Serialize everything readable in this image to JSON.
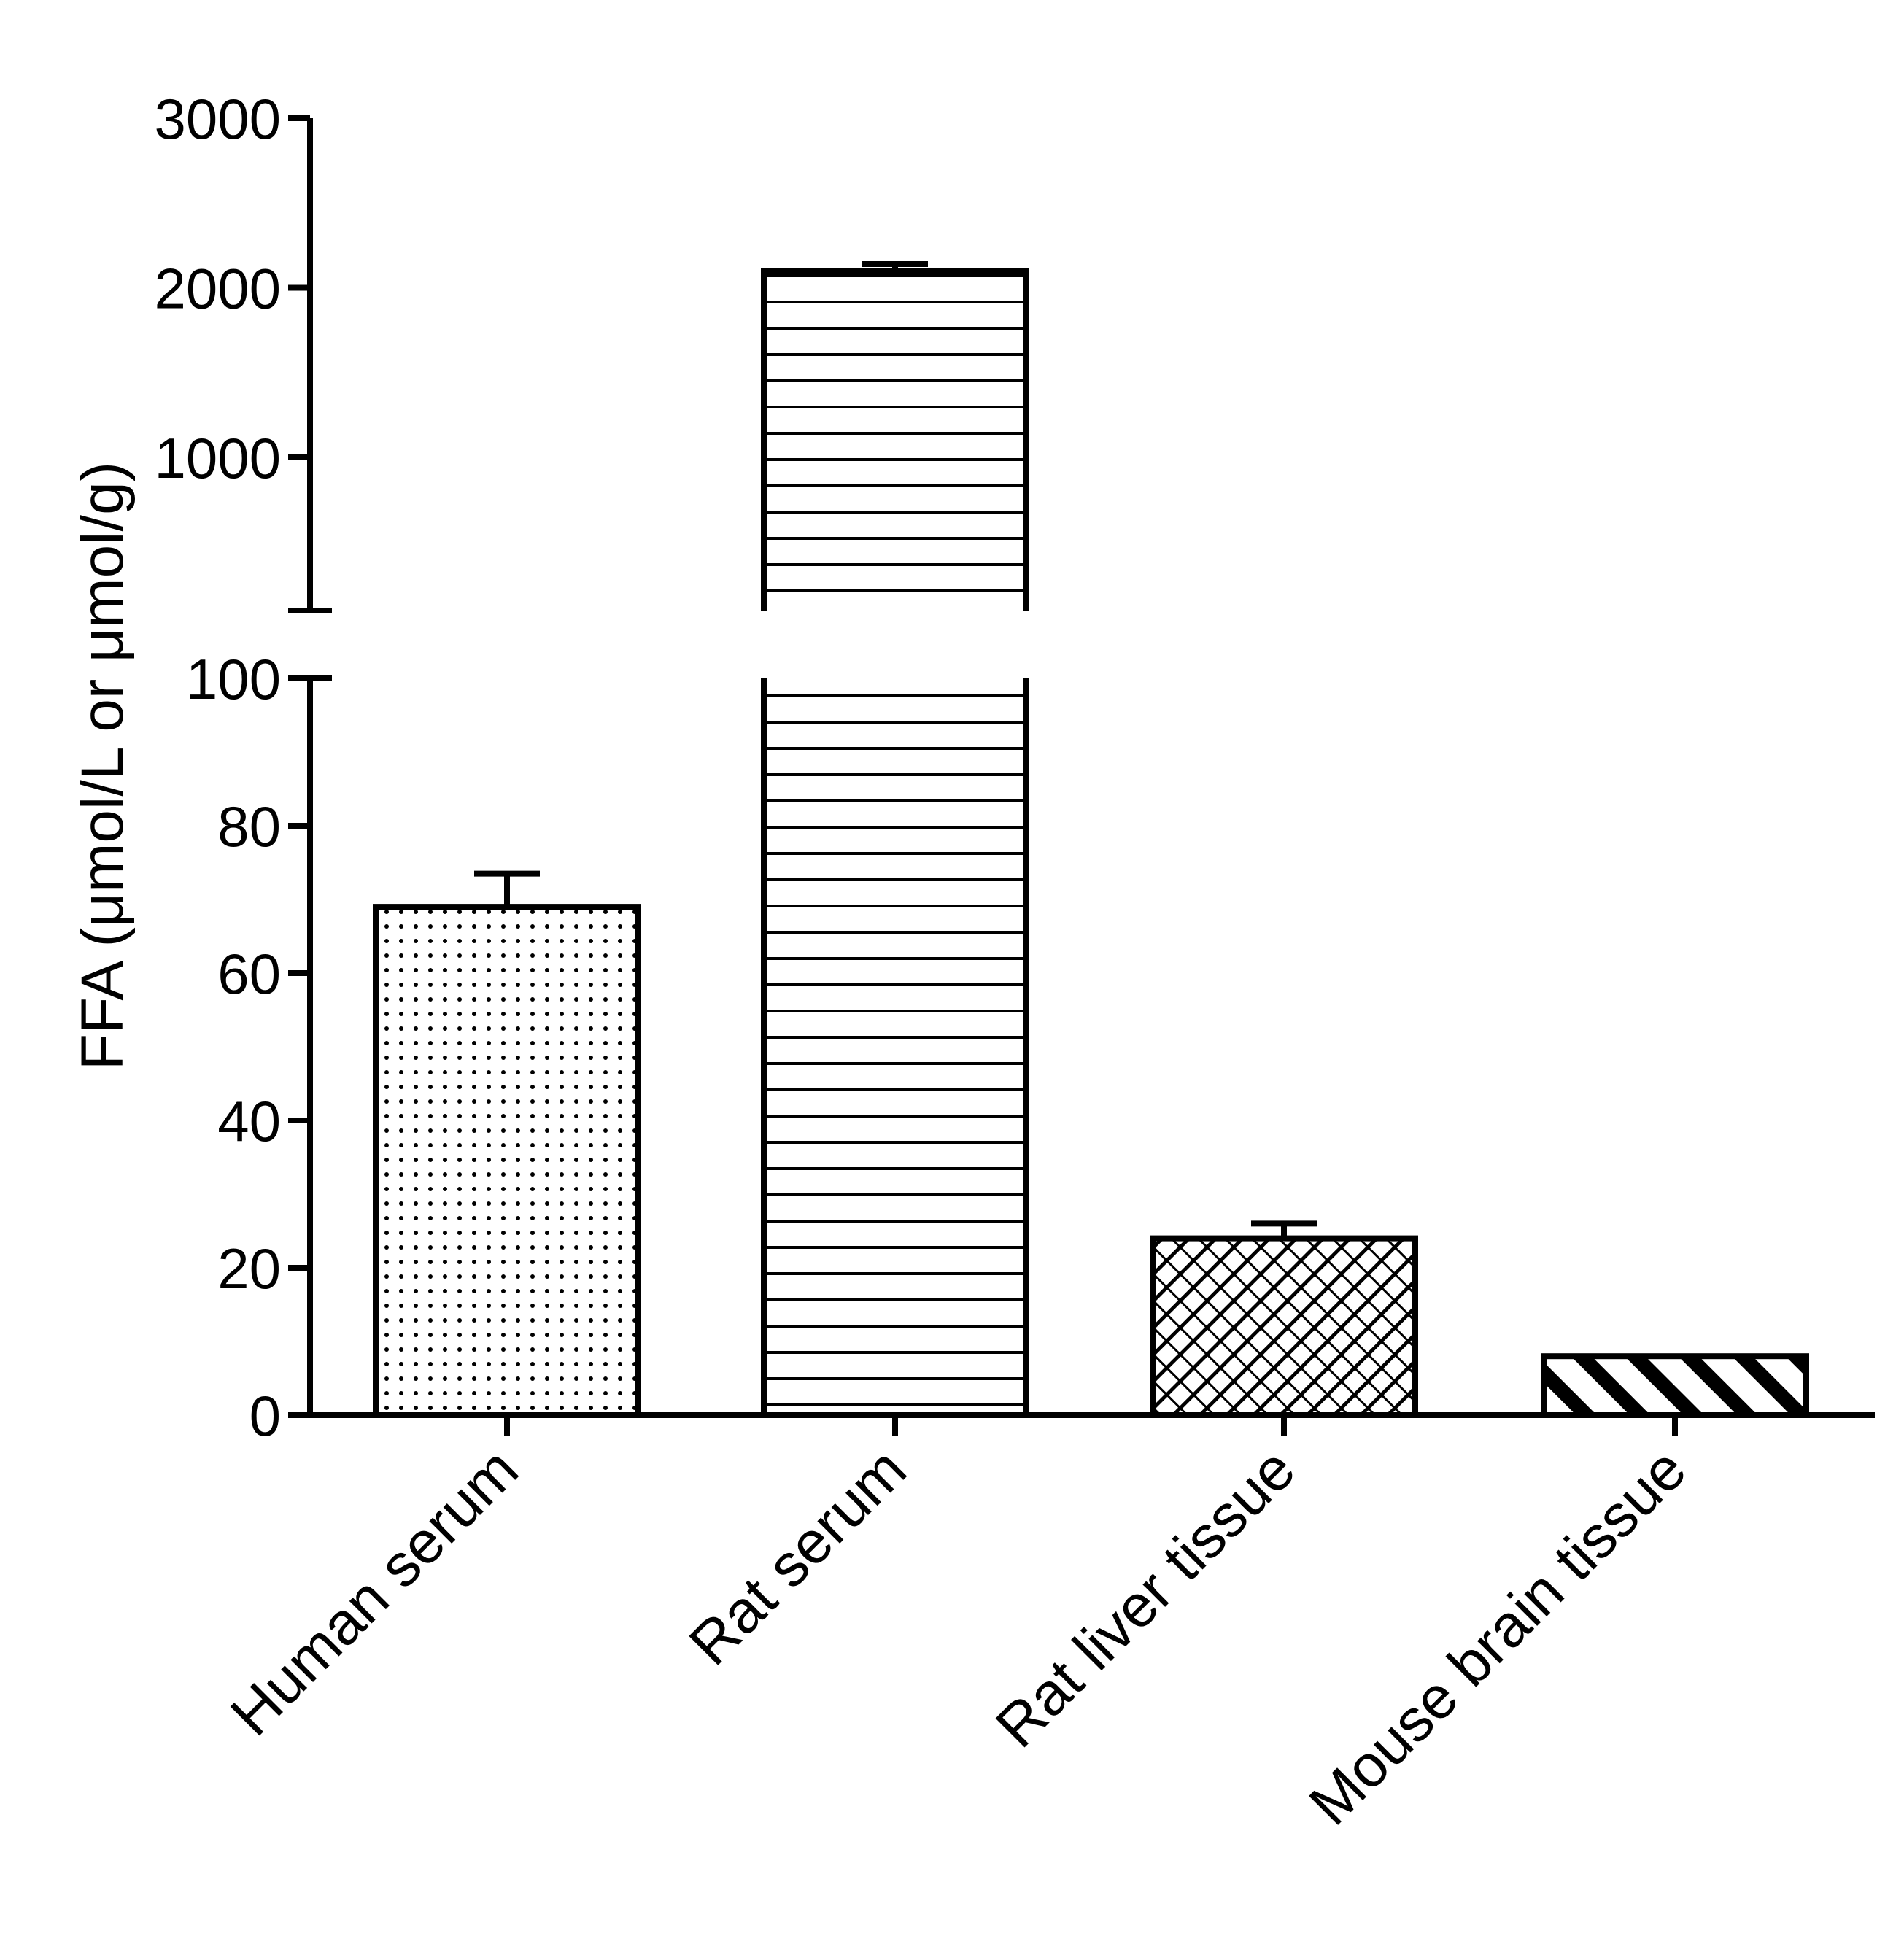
{
  "chart_data": {
    "type": "bar",
    "ylabel": "FFA (μmol/L or μmol/g)",
    "y_axis_broken": true,
    "lower_segment": {
      "ylim": [
        0,
        100
      ],
      "ticks": [
        0,
        20,
        40,
        60,
        80,
        100
      ]
    },
    "upper_segment": {
      "ylim": [
        100,
        3000
      ],
      "ticks": [
        1000,
        2000,
        3000
      ]
    },
    "categories": [
      "Human serum",
      "Rat serum",
      "Rat liver tissue",
      "Mouse brain tissue"
    ],
    "values": [
      69,
      2100,
      24,
      8
    ],
    "error_upper": [
      73.5,
      2140,
      26,
      8
    ],
    "patterns": [
      "dots",
      "horizontal-lines",
      "crosshatch",
      "diagonal-stripes"
    ],
    "colors": {
      "stroke": "#000000",
      "background": "#ffffff"
    }
  }
}
